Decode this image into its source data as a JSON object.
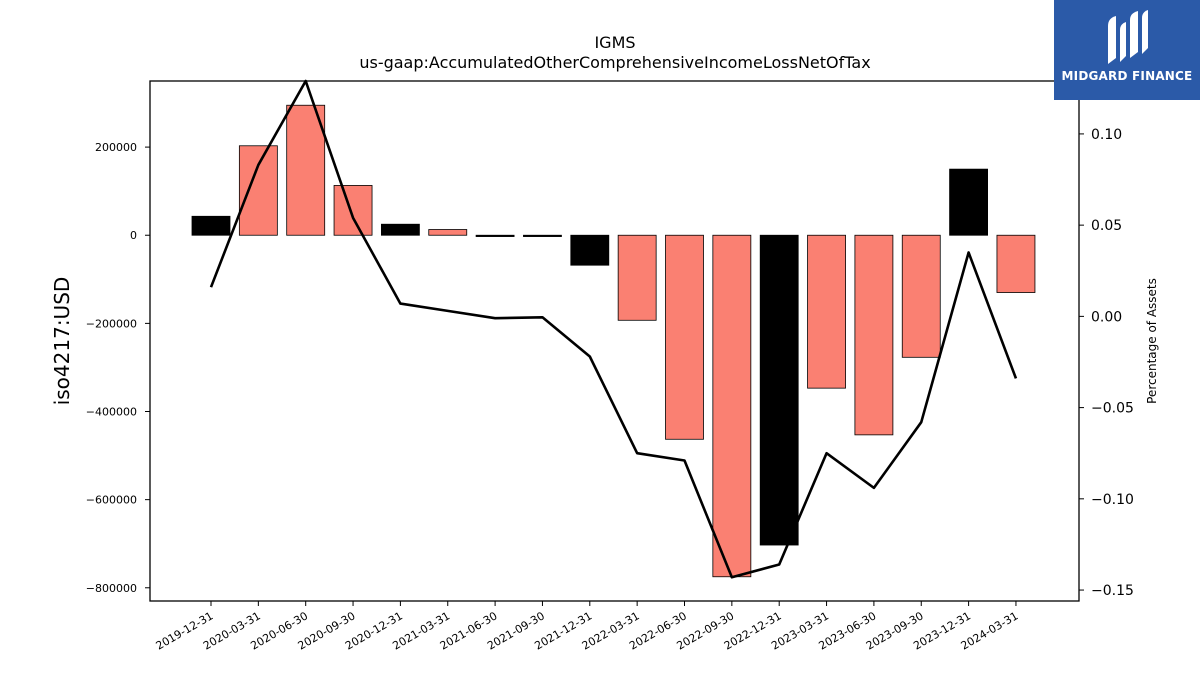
{
  "chart_data": {
    "type": "bar+line",
    "title": "IGMS",
    "subtitle": "us-gaap:AccumulatedOtherComprehensiveIncomeLossNetOfTax",
    "ylabel": "iso4217:USD",
    "y2label": "Percentage of Assets",
    "categories": [
      "2019-12-31",
      "2020-03-31",
      "2020-06-30",
      "2020-09-30",
      "2020-12-31",
      "2021-03-31",
      "2021-06-30",
      "2021-09-30",
      "2021-12-31",
      "2022-03-31",
      "2022-06-30",
      "2022-09-30",
      "2022-12-31",
      "2023-03-31",
      "2023-06-30",
      "2023-09-30",
      "2023-12-31",
      "2024-03-31"
    ],
    "series": [
      {
        "type": "bar",
        "values": [
          43000,
          203000,
          295000,
          113000,
          25000,
          13000,
          -3000,
          -3000,
          -68000,
          -193000,
          -463000,
          -775000,
          -703000,
          -347000,
          -453000,
          -277000,
          150000,
          -130000
        ],
        "colors": [
          "#000000",
          "#fa8072",
          "#fa8072",
          "#fa8072",
          "#000000",
          "#fa8072",
          "#000000",
          "#000000",
          "#000000",
          "#fa8072",
          "#fa8072",
          "#fa8072",
          "#000000",
          "#fa8072",
          "#fa8072",
          "#fa8072",
          "#000000",
          "#fa8072"
        ]
      },
      {
        "type": "line",
        "axis": "right",
        "color": "#000000",
        "values": [
          0.016,
          0.083,
          0.129,
          0.054,
          0.007,
          0.003,
          -0.001,
          -0.0005,
          -0.022,
          -0.075,
          -0.079,
          -0.143,
          -0.136,
          -0.075,
          -0.094,
          -0.058,
          0.035,
          -0.034
        ]
      }
    ],
    "ylim": [
      -830000,
      350000
    ],
    "y2lim": [
      -0.156,
      0.129
    ],
    "yticks": [
      200000,
      0,
      -200000,
      -400000,
      -600000,
      -800000
    ],
    "y2ticks": [
      0.1,
      0.05,
      0.0,
      -0.05,
      -0.1,
      -0.15
    ],
    "y2tick_labels": [
      "0.10",
      "0.05",
      "0.00",
      "−0.05",
      "−0.10",
      "−0.15"
    ],
    "grid": false,
    "legend": "none"
  },
  "logo": {
    "text": "MIDGARD FINANCE",
    "colors": {
      "background": "#2b5aa8",
      "foreground": "#ffffff"
    }
  }
}
